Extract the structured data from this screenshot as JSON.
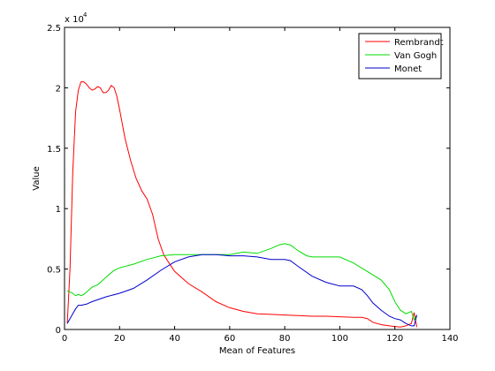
{
  "chart_data": {
    "type": "line",
    "title": "",
    "xlabel": "Mean of Features",
    "ylabel": "Value",
    "xlim": [
      0,
      140
    ],
    "ylim": [
      0,
      25000
    ],
    "x_ticks": [
      0,
      20,
      40,
      60,
      80,
      100,
      120,
      140
    ],
    "y_ticks": [
      0,
      5000,
      10000,
      15000,
      20000,
      25000
    ],
    "x_tick_labels": [
      "0",
      "20",
      "40",
      "60",
      "80",
      "100",
      "120",
      "140"
    ],
    "y_tick_labels": [
      "0",
      "0.5",
      "1",
      "1.5",
      "2",
      "2.5"
    ],
    "y_multiplier": {
      "base": "x 10",
      "exponent": "4"
    },
    "grid": false,
    "legend_position": "top-right",
    "series": [
      {
        "name": "Rembrandt",
        "color": "#ff0000",
        "x": [
          1,
          2,
          3,
          4,
          5,
          6,
          7,
          8,
          9,
          10,
          11,
          12,
          13,
          14,
          15,
          16,
          17,
          18,
          19,
          20,
          22,
          24,
          26,
          28,
          30,
          32,
          34,
          36,
          38,
          40,
          45,
          50,
          55,
          60,
          65,
          70,
          75,
          80,
          85,
          90,
          95,
          100,
          105,
          108,
          110,
          112,
          115,
          118,
          120,
          122,
          124,
          126,
          127,
          128
        ],
        "y": [
          500,
          5000,
          13000,
          18000,
          19800,
          20500,
          20500,
          20300,
          20000,
          19800,
          19900,
          20100,
          20000,
          19600,
          19600,
          19800,
          20200,
          20000,
          19300,
          18200,
          15800,
          14000,
          12500,
          11500,
          10800,
          9500,
          7500,
          6200,
          5500,
          4800,
          3800,
          3100,
          2300,
          1800,
          1500,
          1300,
          1250,
          1200,
          1150,
          1100,
          1100,
          1050,
          1000,
          1000,
          900,
          600,
          400,
          300,
          250,
          200,
          300,
          500,
          1400,
          200
        ]
      },
      {
        "name": "Van Gogh",
        "color": "#00dd00",
        "x": [
          1,
          2,
          3,
          4,
          5,
          6,
          7,
          8,
          10,
          12,
          14,
          16,
          18,
          20,
          25,
          30,
          35,
          40,
          45,
          50,
          55,
          60,
          65,
          70,
          75,
          78,
          80,
          82,
          85,
          88,
          90,
          95,
          100,
          105,
          110,
          115,
          118,
          120,
          122,
          124,
          126,
          127,
          128
        ],
        "y": [
          3200,
          3100,
          3000,
          2800,
          2900,
          2800,
          2900,
          3100,
          3500,
          3700,
          4100,
          4500,
          4900,
          5100,
          5400,
          5800,
          6100,
          6200,
          6200,
          6200,
          6200,
          6200,
          6400,
          6300,
          6700,
          7000,
          7100,
          7000,
          6500,
          6100,
          6000,
          6000,
          6000,
          5500,
          4800,
          4100,
          3300,
          2300,
          1600,
          1300,
          1500,
          800,
          1200
        ]
      },
      {
        "name": "Monet",
        "color": "#0000cc",
        "x": [
          1,
          2,
          3,
          4,
          5,
          6,
          8,
          10,
          15,
          20,
          25,
          30,
          35,
          40,
          45,
          50,
          55,
          60,
          65,
          70,
          75,
          80,
          82,
          85,
          90,
          95,
          100,
          105,
          108,
          110,
          112,
          115,
          118,
          120,
          122,
          124,
          126,
          127,
          128
        ],
        "y": [
          500,
          900,
          1300,
          1700,
          2000,
          2000,
          2100,
          2300,
          2700,
          3000,
          3400,
          4100,
          4900,
          5600,
          6000,
          6200,
          6200,
          6100,
          6100,
          6000,
          5800,
          5800,
          5700,
          5200,
          4400,
          3900,
          3600,
          3600,
          3300,
          2800,
          2200,
          1600,
          1100,
          900,
          800,
          500,
          300,
          300,
          1200
        ]
      }
    ]
  }
}
